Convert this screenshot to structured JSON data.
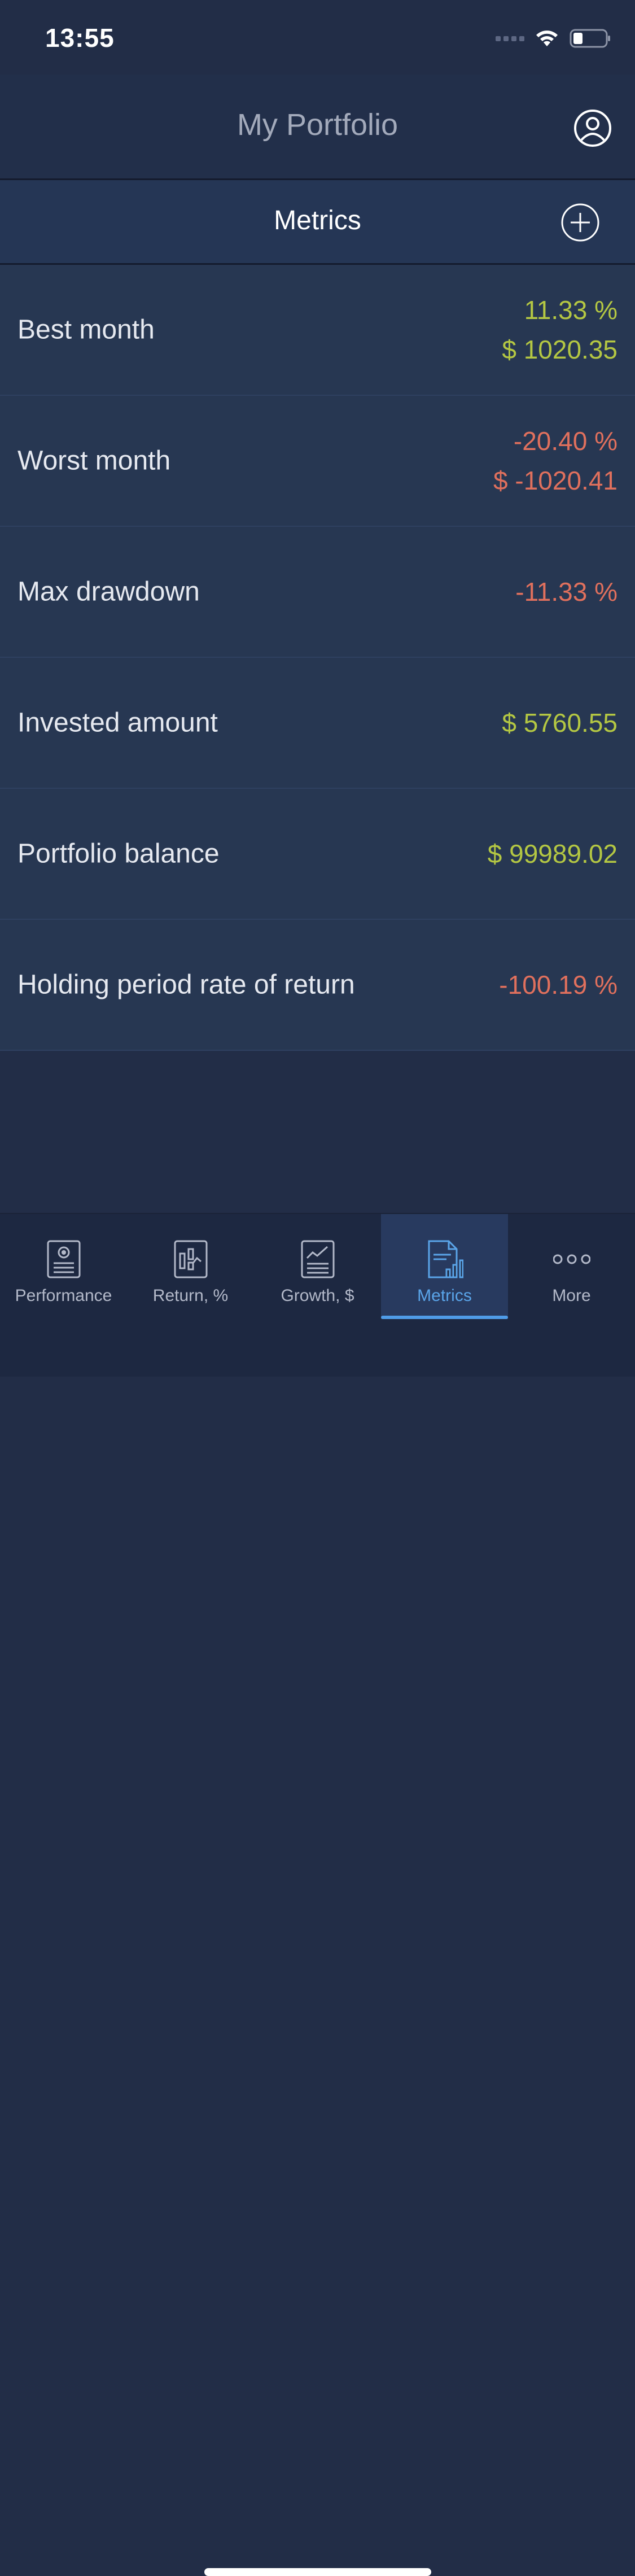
{
  "status_bar": {
    "time": "13:55"
  },
  "header": {
    "title": "My Portfolio",
    "profile_icon": "user-circle-icon"
  },
  "section": {
    "title": "Metrics",
    "add_icon": "plus-circle-icon"
  },
  "metrics": [
    {
      "label": "Best month",
      "values": [
        {
          "text": "11.33 %",
          "tone": "positive"
        },
        {
          "text": "$ 1020.35",
          "tone": "positive"
        }
      ]
    },
    {
      "label": "Worst month",
      "values": [
        {
          "text": "-20.40 %",
          "tone": "negative"
        },
        {
          "text": "$ -1020.41",
          "tone": "negative"
        }
      ]
    },
    {
      "label": "Max drawdown",
      "values": [
        {
          "text": "-11.33 %",
          "tone": "negative"
        }
      ]
    },
    {
      "label": "Invested amount",
      "values": [
        {
          "text": "$ 5760.55",
          "tone": "positive"
        }
      ]
    },
    {
      "label": "Portfolio balance",
      "values": [
        {
          "text": "$ 99989.02",
          "tone": "positive"
        }
      ]
    },
    {
      "label": "Holding period rate of return",
      "values": [
        {
          "text": "-100.19 %",
          "tone": "negative"
        }
      ]
    }
  ],
  "tabs": [
    {
      "label": "Performance",
      "icon": "performance-report-icon",
      "active": false
    },
    {
      "label": "Return, %",
      "icon": "return-chart-icon",
      "active": false
    },
    {
      "label": "Growth, $",
      "icon": "growth-chart-icon",
      "active": false
    },
    {
      "label": "Metrics",
      "icon": "metrics-document-icon",
      "active": true
    },
    {
      "label": "More",
      "icon": "more-dots-icon",
      "active": false
    }
  ],
  "colors": {
    "positive": "#b4c743",
    "negative": "#e0705d",
    "accent": "#4f9ce8",
    "background": "#222d47"
  }
}
